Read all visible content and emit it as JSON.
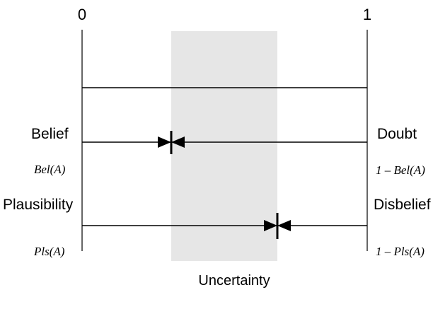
{
  "diagram": {
    "scale": {
      "min_label": "0",
      "max_label": "1"
    },
    "belief": {
      "label": "Belief",
      "formula": "Bel(A)",
      "marker_value": 0.31
    },
    "doubt": {
      "label": "Doubt",
      "formula": "1 – Bel(A)"
    },
    "plausibility": {
      "label": "Plausibility",
      "formula": "Pls(A)",
      "marker_value": 0.69
    },
    "disbelief": {
      "label": "Disbelief",
      "formula": "1 – Pls(A)"
    },
    "uncertainty": {
      "label": "Uncertainty",
      "range": [
        0.31,
        0.69
      ],
      "color": "#e6e6e6"
    },
    "line_color": "#000000"
  }
}
